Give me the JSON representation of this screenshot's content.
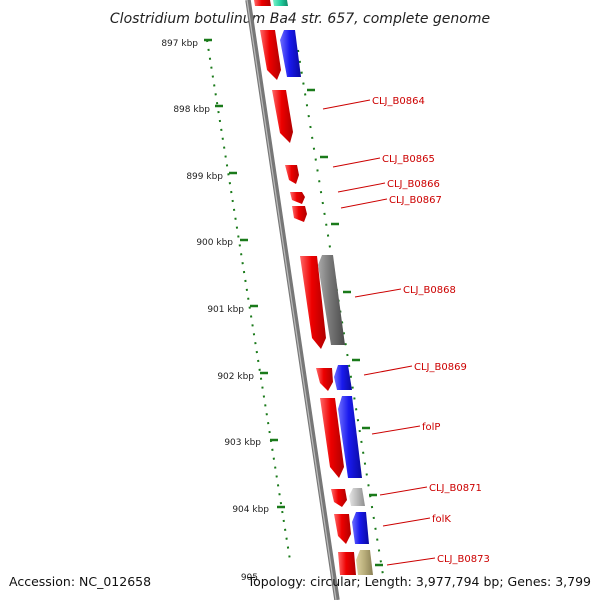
{
  "title": "Clostridium botulinum Ba4 str. 657, complete genome",
  "accession": "Accession: NC_012658",
  "topology": "Topology: circular; Length: 3,977,794 bp; Genes: 3,799",
  "colors": {
    "cds_red": "#ee0000",
    "cds_blue": "#1a1aee",
    "cds_grey": "#777777",
    "cds_lightgrey": "#bbbbbb",
    "cds_khaki": "#b8ad7a",
    "cds_teal": "#22d0a0",
    "backbone": "#777777",
    "tick_green": "#1a7a1a",
    "label_red": "#cc0000"
  },
  "ruler_ticks": [
    "897 kbp",
    "898 kbp",
    "899 kbp",
    "900 kbp",
    "901 kbp",
    "902 kbp",
    "903 kbp",
    "904 kbp",
    "905"
  ],
  "gene_labels": [
    "CLJ_B0864",
    "CLJ_B0865",
    "CLJ_B0866",
    "CLJ_B0867",
    "CLJ_B0868",
    "CLJ_B0869",
    "folP",
    "CLJ_B0871",
    "folK",
    "CLJ_B0873"
  ]
}
